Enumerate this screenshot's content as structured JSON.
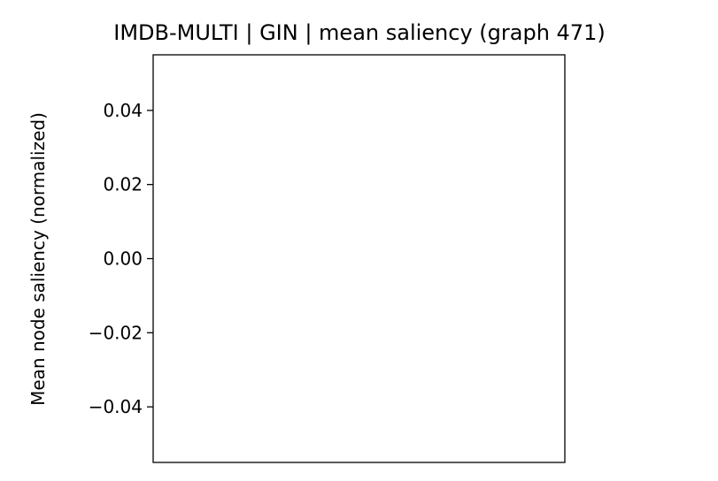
{
  "chart_data": {
    "type": "bar",
    "title": "IMDB-MULTI | GIN | mean saliency (graph 471)",
    "xlabel": "",
    "ylabel": "Mean node saliency (normalized)",
    "ylim": [
      -0.055,
      0.055
    ],
    "yticks": [
      0.04,
      0.02,
      0.0,
      -0.02,
      -0.04
    ],
    "ytick_labels": [
      "0.04",
      "0.02",
      "0.00",
      "−0.02",
      "−0.04"
    ],
    "categories": [],
    "values": [],
    "grid": false
  }
}
